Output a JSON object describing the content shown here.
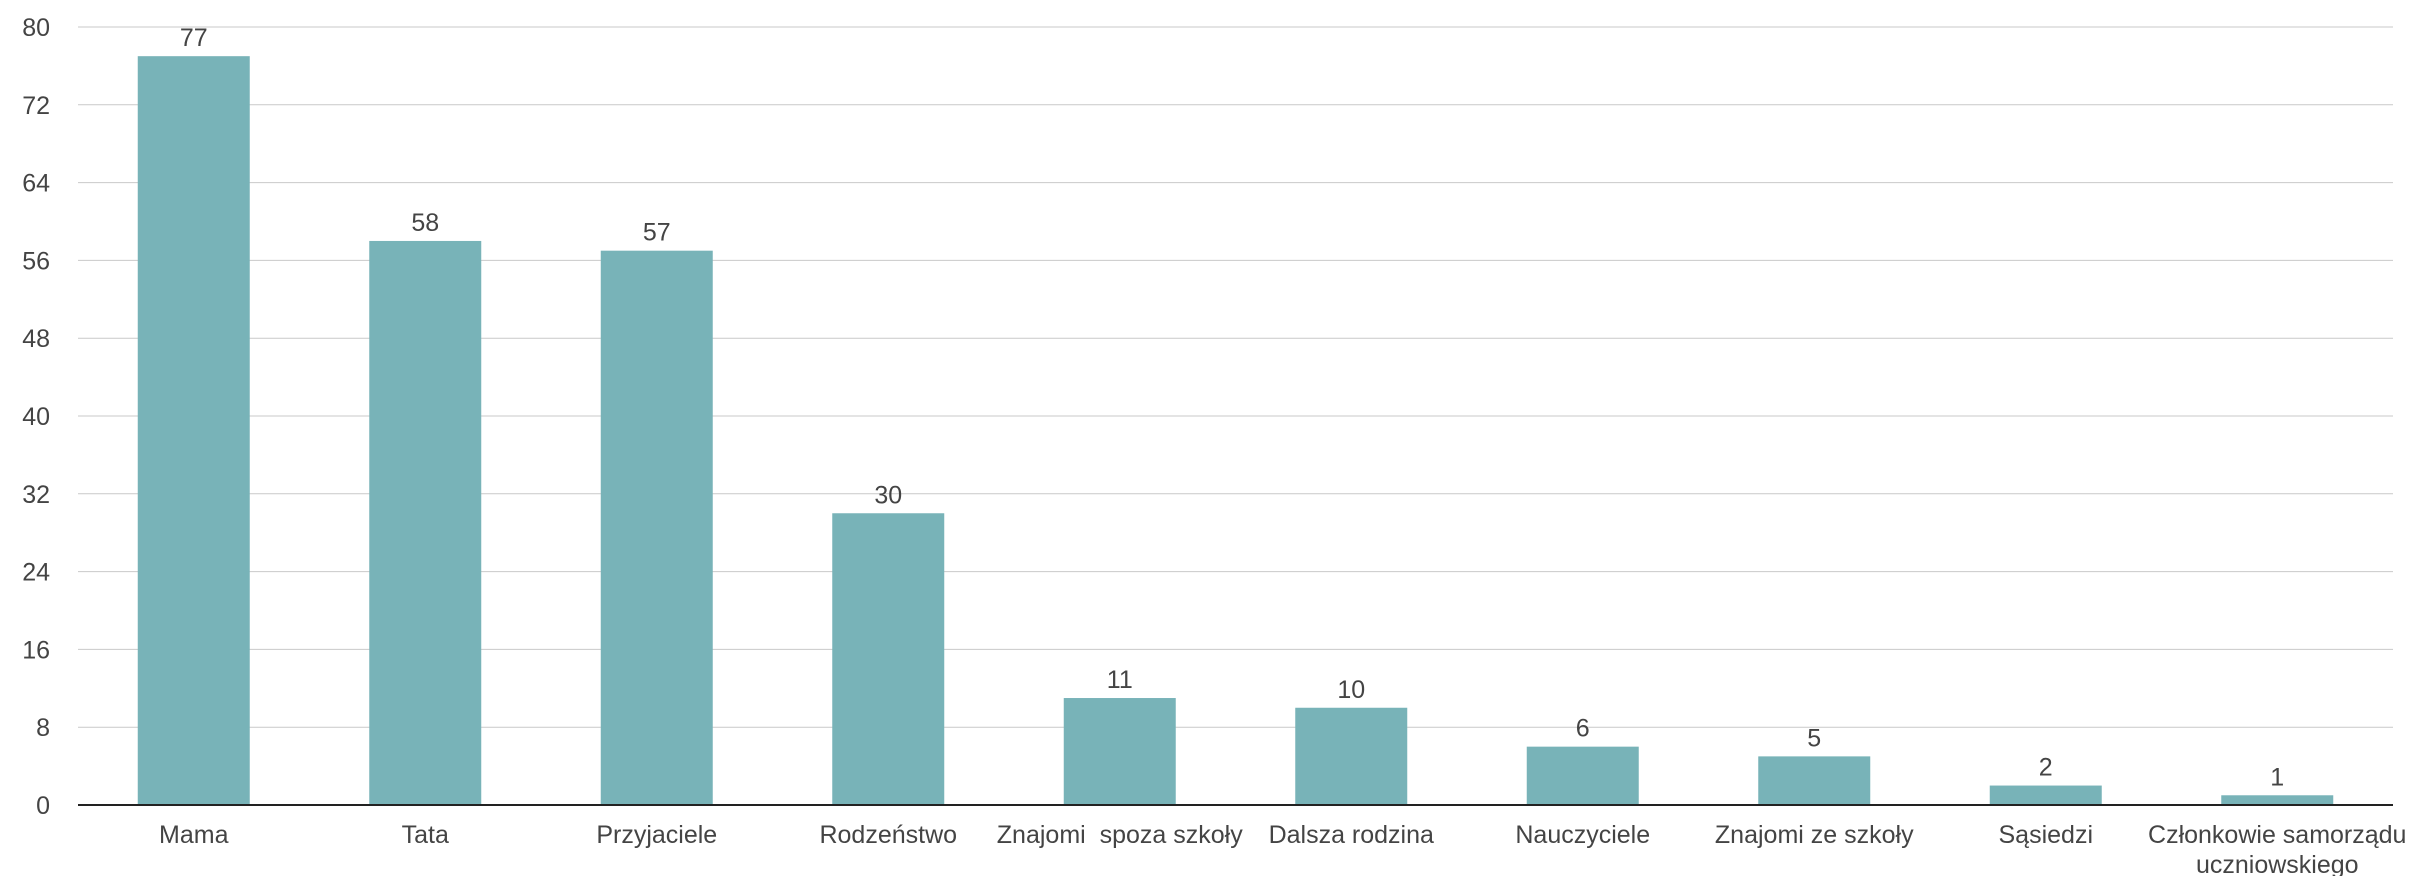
{
  "chart_data": {
    "type": "bar",
    "title": "",
    "xlabel": "",
    "ylabel": "",
    "ylim": [
      0,
      80
    ],
    "yticks": [
      0,
      8,
      16,
      24,
      32,
      40,
      48,
      56,
      64,
      72,
      80
    ],
    "grid": true,
    "legend": "none",
    "bar_color": "#78b3b8",
    "categories": [
      "Mama",
      "Tata",
      "Przyjaciele",
      "Rodzeństwo",
      "Znajomi  spoza szkoły",
      "Dalsza rodzina",
      "Nauczyciele",
      "Znajomi ze szkoły",
      "Sąsiedzi",
      "Członkowie samorządu uczniowskiego"
    ],
    "values": [
      77,
      58,
      57,
      30,
      11,
      10,
      6,
      5,
      2,
      1
    ]
  }
}
